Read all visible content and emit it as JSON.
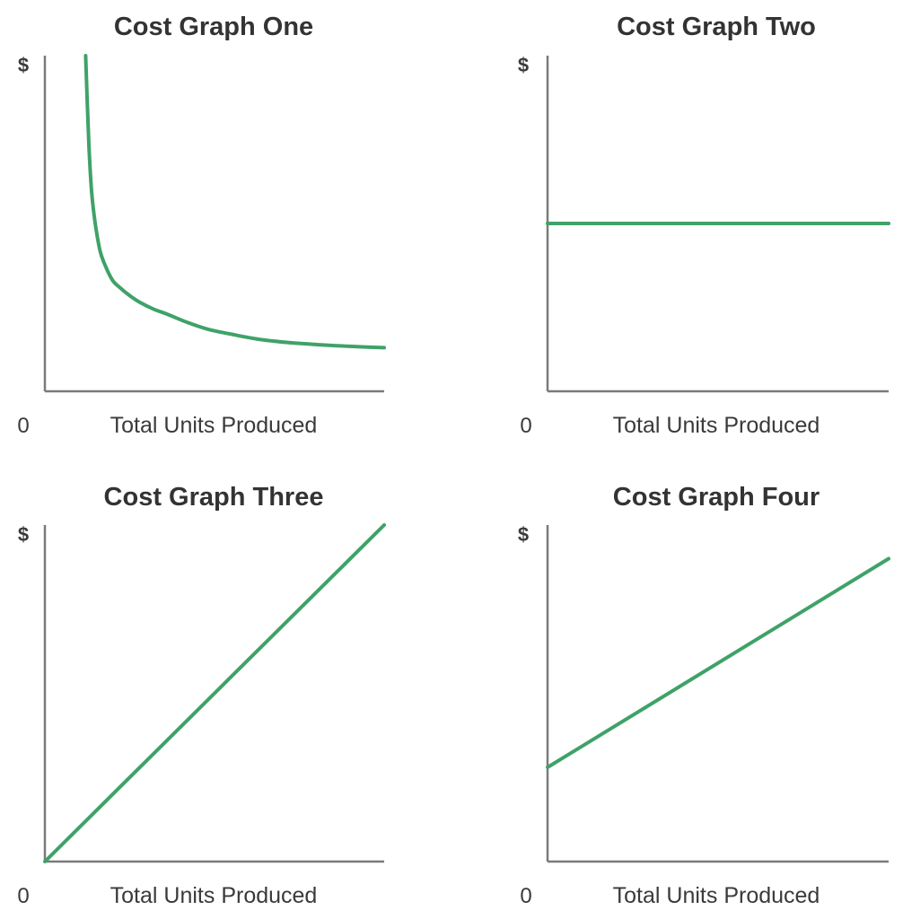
{
  "colors": {
    "line": "#3fa268",
    "axis": "#7a7a7a",
    "text": "#333333"
  },
  "chart_data": [
    {
      "type": "line",
      "title": "Cost Graph One",
      "xlabel": "Total Units Produced",
      "ylabel": "$",
      "x_origin_label": "0",
      "xlim": [
        0,
        100
      ],
      "ylim": [
        0,
        100
      ],
      "grid": false,
      "series": [
        {
          "x": [
            12,
            13,
            14,
            16,
            18,
            20,
            22,
            25,
            28,
            32,
            36,
            42,
            48,
            55,
            63,
            72,
            82,
            92,
            100
          ],
          "y": [
            100,
            73,
            57,
            43,
            37,
            33,
            31,
            28.5,
            26.5,
            24.5,
            23,
            20.5,
            18.5,
            17,
            15.5,
            14.5,
            13.8,
            13.3,
            13
          ]
        }
      ]
    },
    {
      "type": "line",
      "title": "Cost Graph Two",
      "xlabel": "Total Units Produced",
      "ylabel": "$",
      "x_origin_label": "0",
      "xlim": [
        0,
        100
      ],
      "ylim": [
        0,
        100
      ],
      "grid": false,
      "series": [
        {
          "x": [
            0,
            100
          ],
          "y": [
            50,
            50
          ]
        }
      ]
    },
    {
      "type": "line",
      "title": "Cost Graph Three",
      "xlabel": "Total Units Produced",
      "ylabel": "$",
      "x_origin_label": "0",
      "xlim": [
        0,
        100
      ],
      "ylim": [
        0,
        100
      ],
      "grid": false,
      "series": [
        {
          "x": [
            0,
            100
          ],
          "y": [
            0,
            100
          ]
        }
      ]
    },
    {
      "type": "line",
      "title": "Cost Graph Four",
      "xlabel": "Total Units Produced",
      "ylabel": "$",
      "x_origin_label": "0",
      "xlim": [
        0,
        100
      ],
      "ylim": [
        0,
        100
      ],
      "grid": false,
      "series": [
        {
          "x": [
            0,
            100
          ],
          "y": [
            28,
            90
          ]
        }
      ]
    }
  ]
}
